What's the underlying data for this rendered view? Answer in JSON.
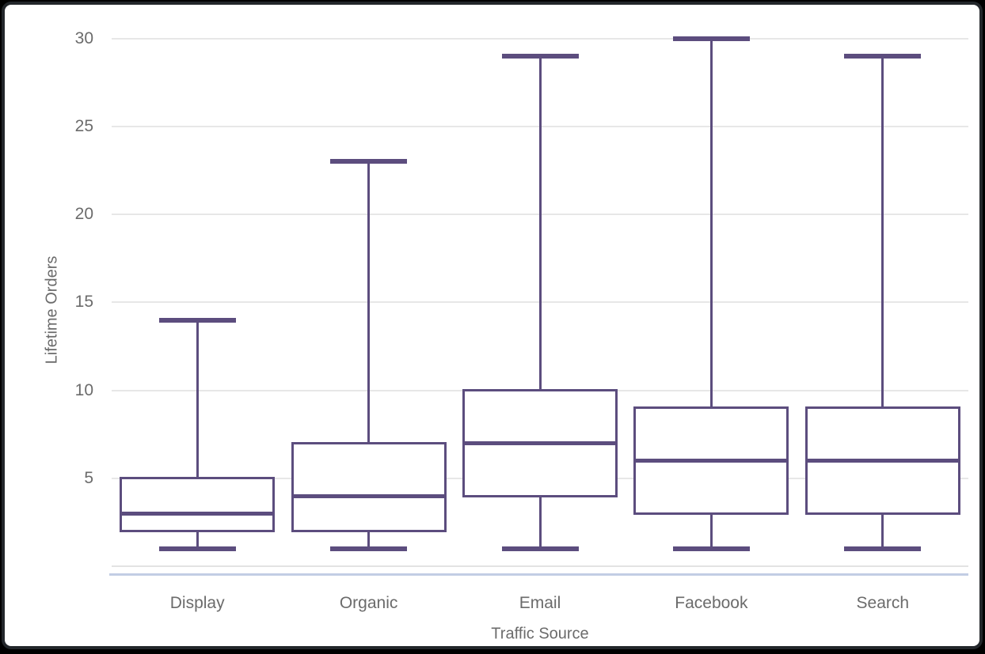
{
  "frame": {
    "background": "#000000",
    "card_border": "#23272b",
    "card_background": "#ffffff"
  },
  "chart_data": {
    "type": "box",
    "xlabel": "Traffic Source",
    "ylabel": "Lifetime Orders",
    "categories": [
      "Display",
      "Organic",
      "Email",
      "Facebook",
      "Search"
    ],
    "series": [
      {
        "name": "Display",
        "min": 1,
        "q1": 2,
        "median": 3,
        "q3": 5,
        "max": 14
      },
      {
        "name": "Organic",
        "min": 1,
        "q1": 2,
        "median": 4,
        "q3": 7,
        "max": 23
      },
      {
        "name": "Email",
        "min": 1,
        "q1": 4,
        "median": 7,
        "q3": 10,
        "max": 29
      },
      {
        "name": "Facebook",
        "min": 1,
        "q1": 3,
        "median": 6,
        "q3": 9,
        "max": 30
      },
      {
        "name": "Search",
        "min": 1,
        "q1": 3,
        "median": 6,
        "q3": 9,
        "max": 29
      }
    ],
    "yticks": [
      5,
      10,
      15,
      20,
      25,
      30
    ],
    "ylim": [
      0,
      30
    ],
    "grid": true,
    "legend": "none",
    "colors": {
      "box": "#5c4d7e",
      "gridline": "#e7e7e7",
      "zero_line": "#e3e3e3",
      "axis_line": "#c2cde4",
      "label": "#6b6b6b"
    }
  }
}
